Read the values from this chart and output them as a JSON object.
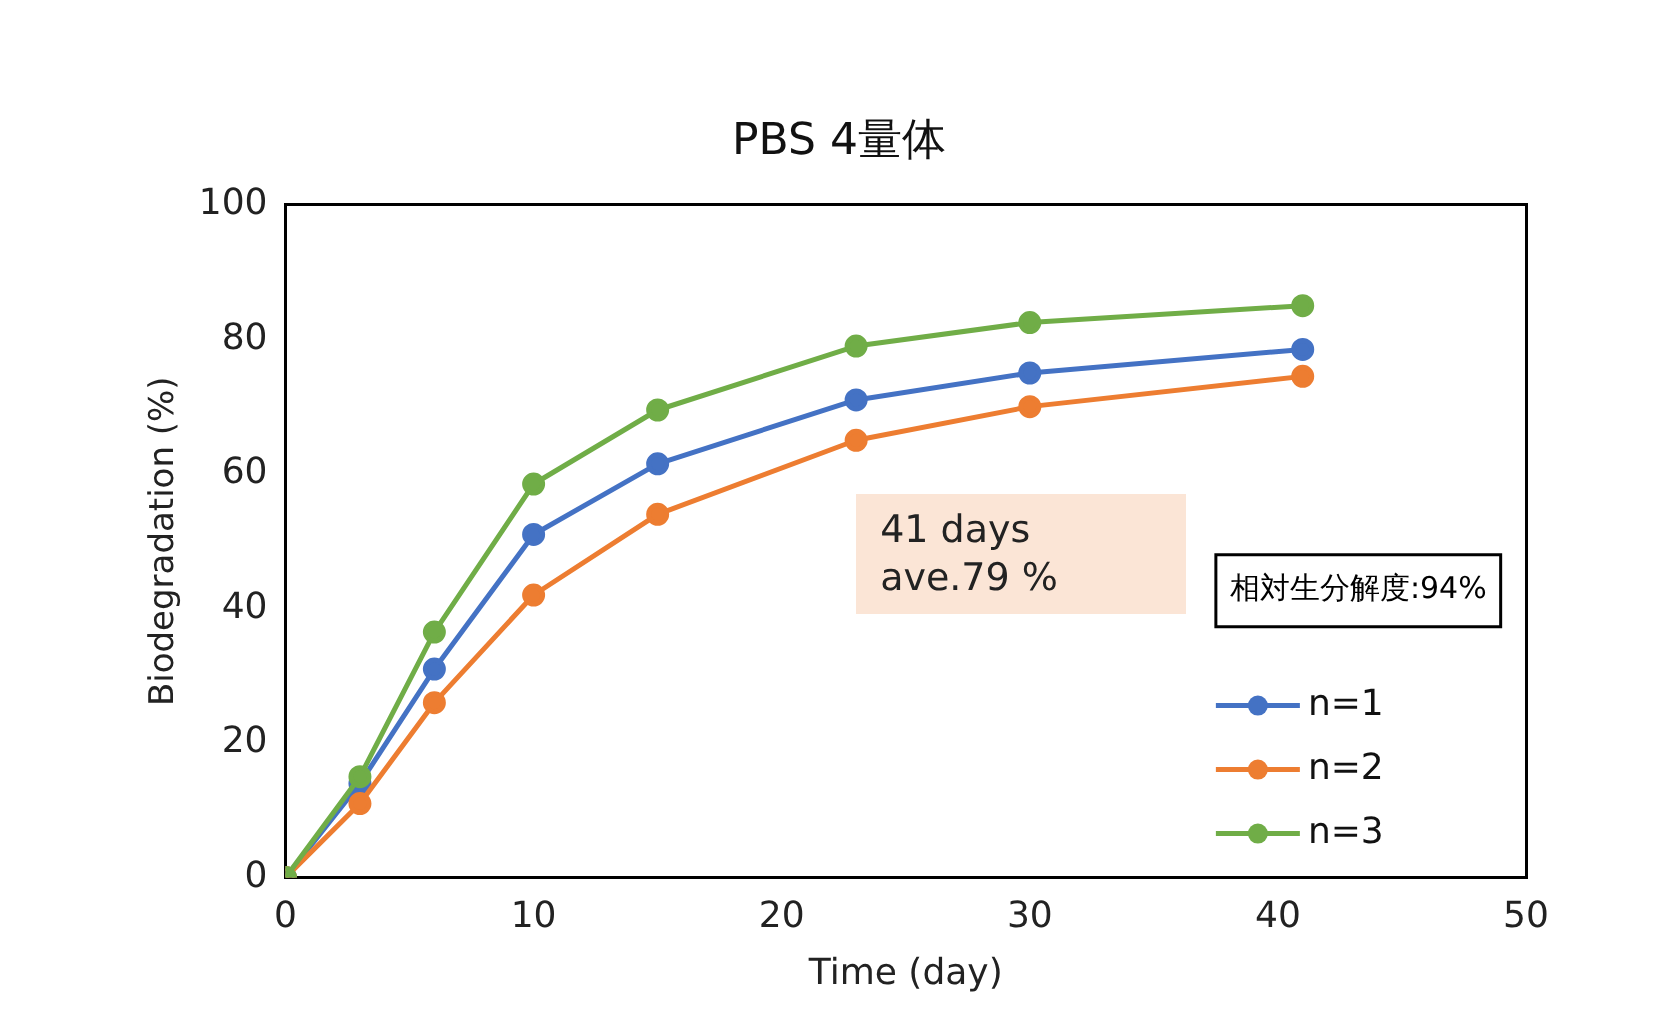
{
  "chart_data": {
    "type": "line",
    "title": "PBS 4量体",
    "xlabel": "Time (day)",
    "ylabel": "Biodegradation (%)",
    "x": [
      0,
      3,
      6,
      10,
      15,
      23,
      30,
      41
    ],
    "series": [
      {
        "name": "n=1",
        "color": "#4472c4",
        "values": [
          0,
          14,
          31,
          51,
          61.5,
          71,
          75,
          78.5
        ]
      },
      {
        "name": "n=2",
        "color": "#ed7d31",
        "values": [
          0,
          11,
          26,
          42,
          54,
          65,
          70,
          74.5
        ]
      },
      {
        "name": "n=3",
        "color": "#70ad47",
        "values": [
          0,
          15,
          36.5,
          58.5,
          69.5,
          79,
          82.5,
          85
        ]
      }
    ],
    "xlim": [
      0,
      50
    ],
    "xticks": [
      0,
      10,
      20,
      30,
      40,
      50
    ],
    "ylim": [
      0,
      100
    ],
    "yticks": [
      0,
      20,
      40,
      60,
      80,
      100
    ],
    "grid": false,
    "legend": "bottom right",
    "marker": "circle",
    "line_style": "solid",
    "annotations": [
      "41 days\nave.79 %",
      "相対生分解度:94%"
    ]
  }
}
